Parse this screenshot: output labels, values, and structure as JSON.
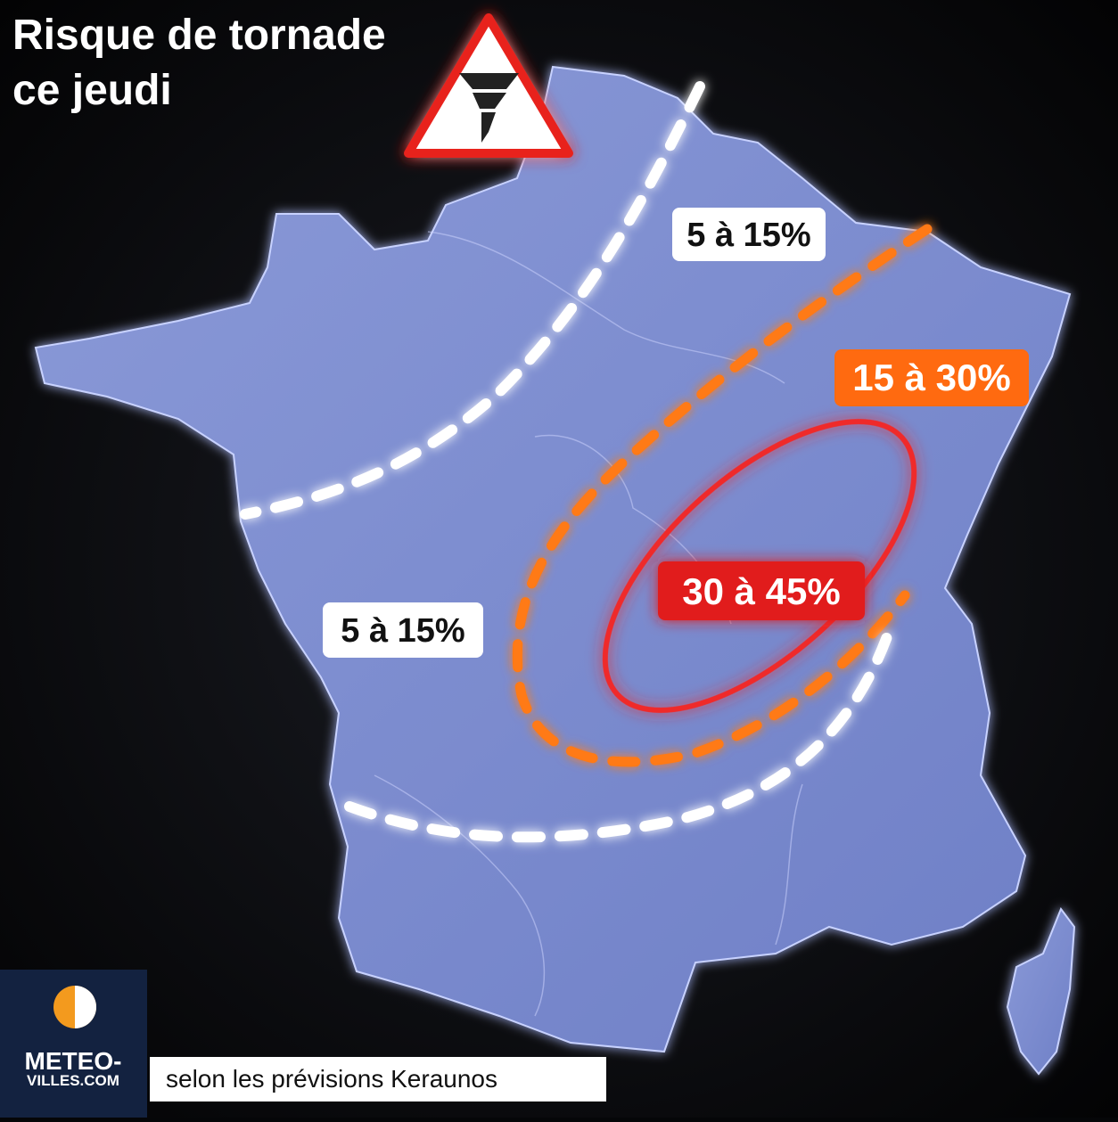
{
  "header": {
    "title_lines": [
      "Risque de tornade",
      "ce jeudi"
    ]
  },
  "zones": [
    {
      "label": "5 à 15%"
    },
    {
      "label": "15 à 30%"
    },
    {
      "label": "30 à 45%"
    },
    {
      "label": "5 à 15%"
    }
  ],
  "footer": {
    "source": "selon les prévisions Keraunos",
    "logo_lines": [
      "METEO-",
      "VILLES.COM"
    ]
  }
}
